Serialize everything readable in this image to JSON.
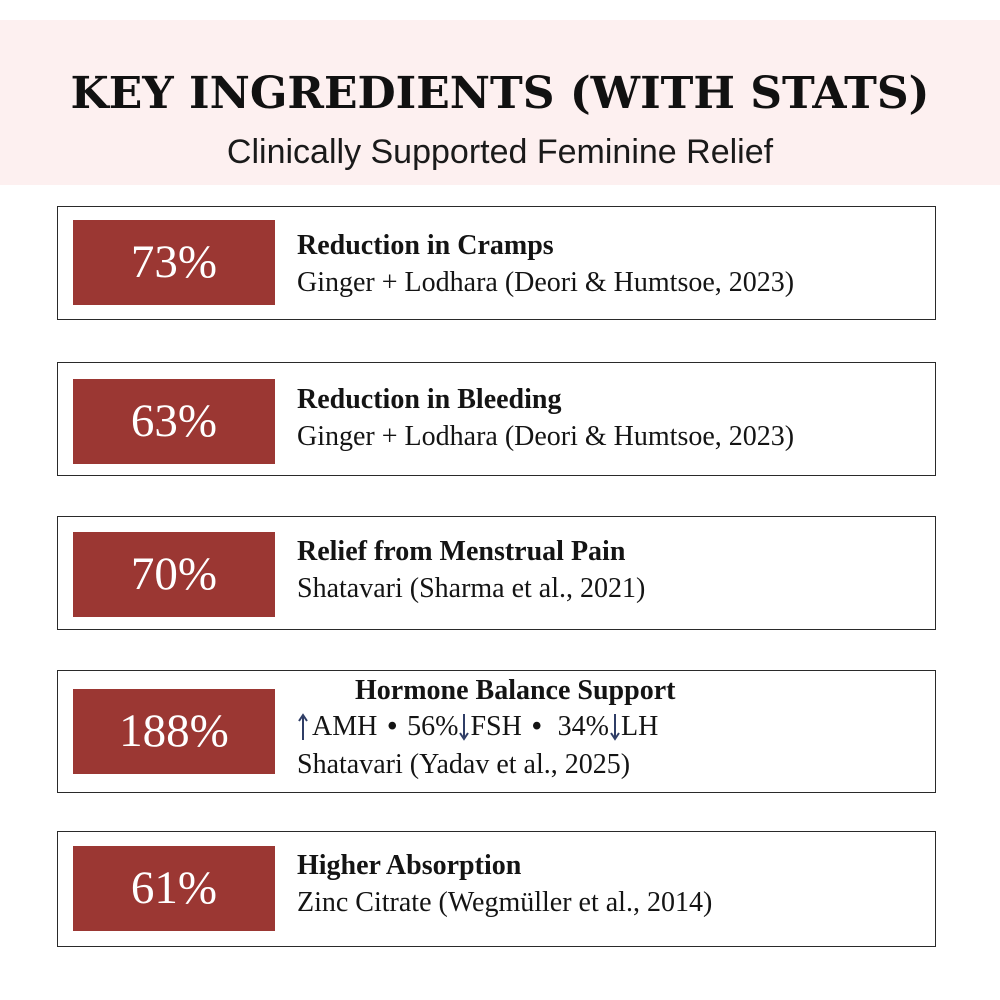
{
  "header": {
    "title": "KEY INGREDIENTS (WITH STATS)",
    "subtitle": "Clinically Supported Feminine Relief"
  },
  "colors": {
    "accent": "#9b3733",
    "header_bg": "#fdf0f0"
  },
  "cards": [
    {
      "stat": "73%",
      "headline": "Reduction in Cramps",
      "source": "Ginger + Lodhara (Deori & Humtsoe, 2023)"
    },
    {
      "stat": "63%",
      "headline": "Reduction in Bleeding",
      "source": "Ginger + Lodhara (Deori & Humtsoe, 2023)"
    },
    {
      "stat": "70%",
      "headline": "Relief from Menstrual Pain",
      "source": "Shatavari (Sharma et al., 2021)"
    },
    {
      "stat": "188%",
      "headline": "Hormone Balance Support",
      "metrics": {
        "amh": "AMH",
        "sep": "•",
        "fsh_value": "56%",
        "fsh": "FSH",
        "lh_value": "34%",
        "lh": "LH",
        "up_icon": "arrow-up-icon",
        "down_icon": "arrow-down-icon"
      },
      "source": "Shatavari (Yadav et al., 2025)"
    },
    {
      "stat": "61%",
      "headline": "Higher Absorption",
      "source": "Zinc Citrate (Wegmüller et al., 2014)"
    }
  ]
}
